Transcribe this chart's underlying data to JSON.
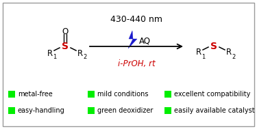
{
  "bg_color": "#ffffff",
  "border_color": "#999999",
  "title_text": "430-440 nm",
  "aq_text": "AQ",
  "iproh_text": "i-PrOH, rt",
  "iproh_color": "#cc0000",
  "arrow_color": "#000000",
  "lightning_color": "#1a1acc",
  "sulfoxide_S_color": "#cc0000",
  "sulfide_S_color": "#cc0000",
  "green_color": "#00ee00",
  "label_fontsize": 7.0,
  "green_labels_row1": [
    "metal-free",
    "mild conditions",
    "excellent compatibility"
  ],
  "green_labels_row2": [
    "easy-handling",
    "green deoxidizer",
    "easily available catalyst"
  ]
}
